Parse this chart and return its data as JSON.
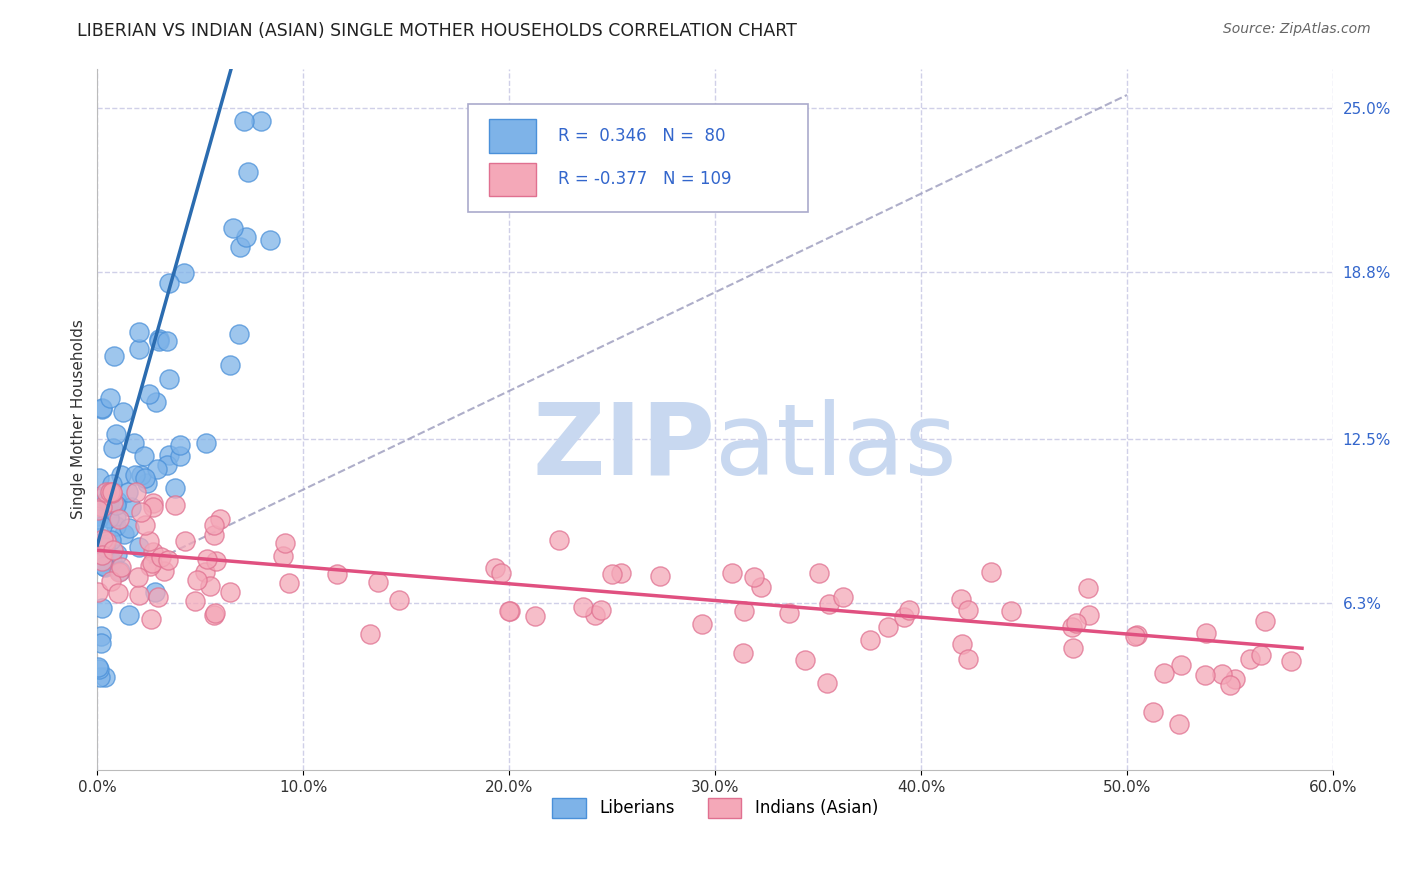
{
  "title": "LIBERIAN VS INDIAN (ASIAN) SINGLE MOTHER HOUSEHOLDS CORRELATION CHART",
  "source": "Source: ZipAtlas.com",
  "ylabel": "Single Mother Households",
  "xlim": [
    0.0,
    0.6
  ],
  "ylim": [
    0.0,
    0.265
  ],
  "xtick_labels": [
    "0.0%",
    "10.0%",
    "20.0%",
    "30.0%",
    "40.0%",
    "50.0%",
    "60.0%"
  ],
  "xtick_values": [
    0.0,
    0.1,
    0.2,
    0.3,
    0.4,
    0.5,
    0.6
  ],
  "ytick_labels_right": [
    "25.0%",
    "18.8%",
    "12.5%",
    "6.3%"
  ],
  "ytick_values_right": [
    0.25,
    0.188,
    0.125,
    0.063
  ],
  "liberian_R": 0.346,
  "liberian_N": 80,
  "indian_R": -0.377,
  "indian_N": 109,
  "liberian_color": "#7EB3E8",
  "liberian_edge": "#4A90D9",
  "indian_color": "#F4A8B8",
  "indian_edge": "#E07090",
  "liberian_line_color": "#2B6CB0",
  "indian_line_color": "#E05080",
  "dashed_line_color": "#A0A0C0",
  "legend_text_color": "#3366CC",
  "watermark_color": "#C8D8F0",
  "background_color": "#FFFFFF",
  "grid_color": "#D0D0E8"
}
